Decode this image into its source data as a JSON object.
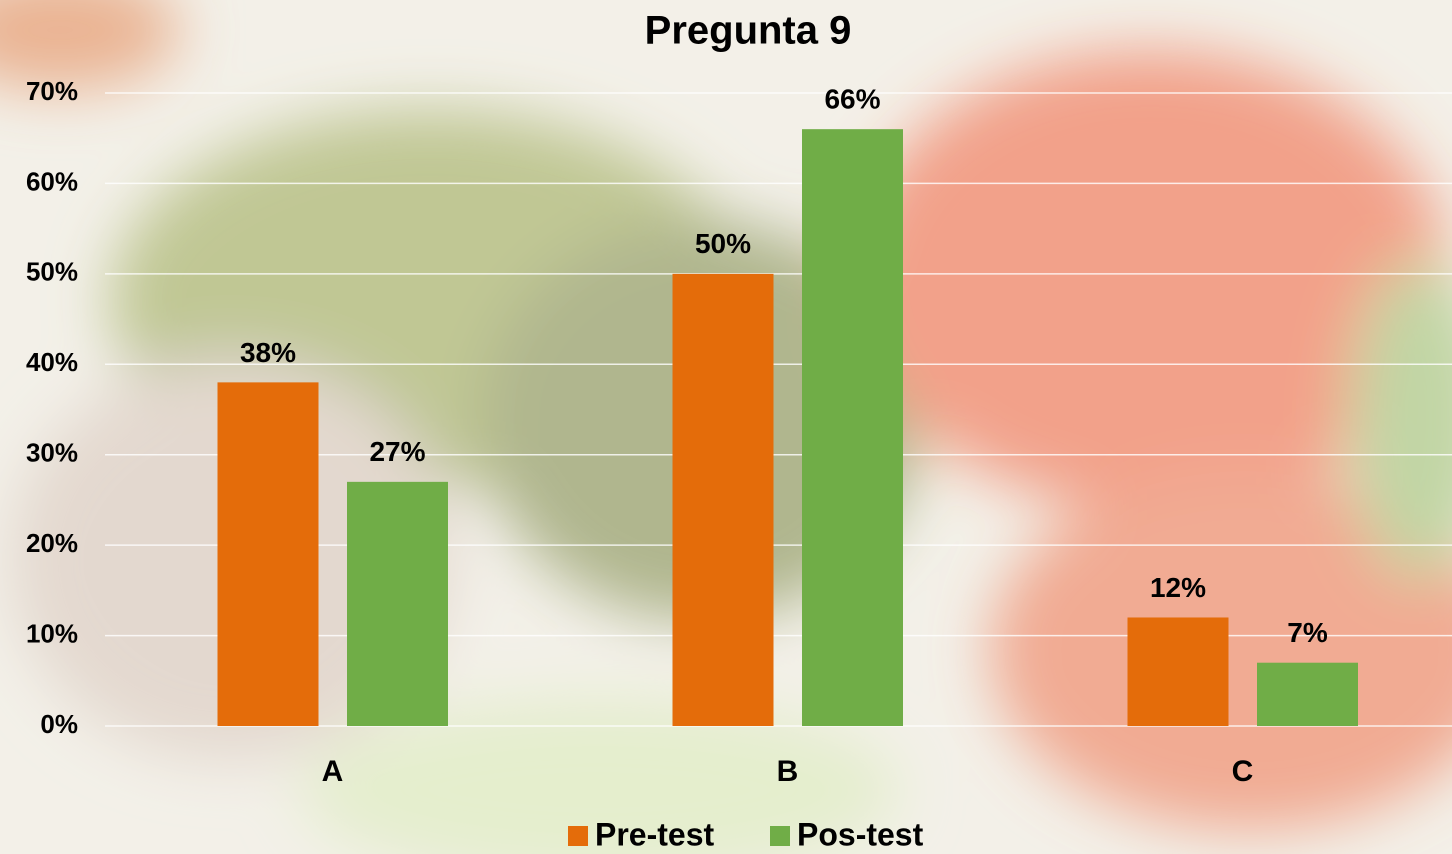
{
  "chart_data": {
    "type": "bar",
    "title": "Pregunta 9",
    "categories": [
      "A",
      "B",
      "C"
    ],
    "series": [
      {
        "name": "Pre-test",
        "color": "#e46c0a",
        "values": [
          38,
          50,
          12
        ],
        "value_labels": [
          "38%",
          "50%",
          "12%"
        ]
      },
      {
        "name": "Pos-test",
        "color": "#70ad47",
        "values": [
          27,
          66,
          7
        ],
        "value_labels": [
          "27%",
          "66%",
          "7%"
        ]
      }
    ],
    "ylim": [
      0,
      70
    ],
    "yticks": [
      {
        "value": 0,
        "label": "0%"
      },
      {
        "value": 10,
        "label": "10%"
      },
      {
        "value": 20,
        "label": "20%"
      },
      {
        "value": 30,
        "label": "30%"
      },
      {
        "value": 40,
        "label": "40%"
      },
      {
        "value": 50,
        "label": "50%"
      },
      {
        "value": 60,
        "label": "60%"
      },
      {
        "value": 70,
        "label": "70%"
      }
    ],
    "grid": true,
    "legend": "bottom"
  }
}
